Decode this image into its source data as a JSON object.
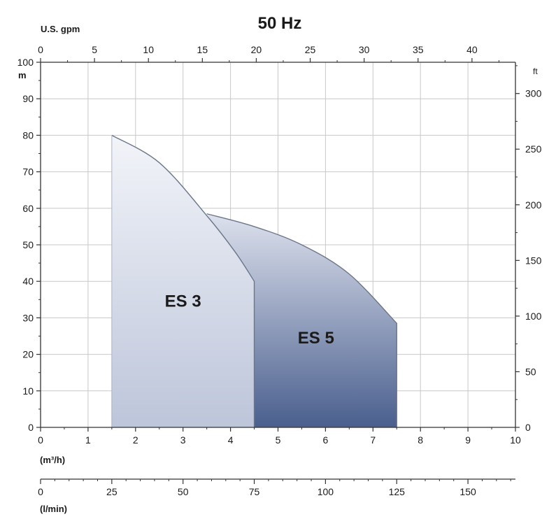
{
  "chart_data": {
    "type": "area",
    "title": "50 Hz",
    "x_axis": {
      "unit_label": "(m³/h)",
      "range": [
        0,
        10
      ],
      "ticks": [
        0,
        1,
        2,
        3,
        4,
        5,
        6,
        7,
        8,
        9,
        10
      ]
    },
    "top_axis": {
      "unit_label": "U.S. gpm",
      "ticks": [
        0,
        5,
        10,
        15,
        20,
        25,
        30,
        35,
        40
      ]
    },
    "secondary_x_axis": {
      "unit_label": "(l/min)",
      "ticks": [
        0,
        25,
        50,
        75,
        100,
        125,
        150
      ]
    },
    "y_axis": {
      "unit_label": "m",
      "range": [
        0,
        100
      ],
      "ticks": [
        0,
        10,
        20,
        30,
        40,
        50,
        60,
        70,
        80,
        90,
        100
      ]
    },
    "right_axis": {
      "unit_label": "ft",
      "ticks": [
        0,
        50,
        100,
        150,
        200,
        250,
        300
      ]
    },
    "grid": true,
    "series": [
      {
        "name": "ES 3",
        "x_range": [
          1.5,
          4.5
        ],
        "curve": [
          [
            1.5,
            80
          ],
          [
            2.5,
            72.5
          ],
          [
            3.5,
            58
          ],
          [
            4.1,
            48
          ],
          [
            4.5,
            40
          ]
        ],
        "fill_top": "#f2f4f9",
        "fill_bottom": "#bdc5da"
      },
      {
        "name": "ES 5",
        "x_range": [
          4.5,
          7.5
        ],
        "curve": [
          [
            3.5,
            58.5
          ],
          [
            4.5,
            55
          ],
          [
            5.5,
            50
          ],
          [
            6.5,
            42
          ],
          [
            7.5,
            28.5
          ]
        ],
        "fill_top": "#dde1ed",
        "fill_bottom": "#4a5f8e"
      }
    ]
  }
}
